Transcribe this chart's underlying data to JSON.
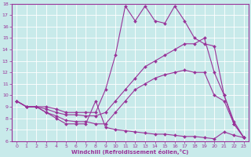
{
  "xlabel": "Windchill (Refroidissement éolien,°C)",
  "bg_color": "#c8eaea",
  "line_color": "#993399",
  "xlim": [
    -0.5,
    23.5
  ],
  "ylim": [
    6,
    18
  ],
  "xticks": [
    0,
    1,
    2,
    3,
    4,
    5,
    6,
    7,
    8,
    9,
    10,
    11,
    12,
    13,
    14,
    15,
    16,
    17,
    18,
    19,
    20,
    21,
    22,
    23
  ],
  "yticks": [
    6,
    7,
    8,
    9,
    10,
    11,
    12,
    13,
    14,
    15,
    16,
    17,
    18
  ],
  "lines": [
    {
      "x": [
        0,
        1,
        2,
        3,
        4,
        5,
        6,
        7,
        8,
        9,
        10,
        11,
        12,
        13,
        14,
        15,
        16,
        17,
        18,
        19,
        20,
        21,
        22,
        23
      ],
      "y": [
        9.5,
        9.0,
        9.0,
        8.5,
        8.0,
        7.5,
        7.5,
        7.5,
        9.5,
        7.2,
        7.0,
        6.9,
        6.8,
        6.7,
        6.6,
        6.6,
        6.5,
        6.4,
        6.4,
        6.3,
        6.2,
        6.8,
        6.5,
        6.3
      ]
    },
    {
      "x": [
        0,
        1,
        2,
        3,
        4,
        5,
        6,
        7,
        8,
        9,
        10,
        11,
        12,
        13,
        14,
        15,
        16,
        17,
        18,
        19,
        20,
        21,
        22,
        23
      ],
      "y": [
        9.5,
        9.0,
        9.0,
        8.5,
        8.2,
        7.8,
        7.7,
        7.7,
        7.5,
        7.5,
        8.5,
        9.5,
        10.5,
        11.0,
        11.5,
        11.8,
        12.0,
        12.2,
        12.0,
        12.0,
        10.0,
        9.5,
        7.5,
        6.3
      ]
    },
    {
      "x": [
        0,
        1,
        2,
        3,
        4,
        5,
        6,
        7,
        8,
        9,
        10,
        11,
        12,
        13,
        14,
        15,
        16,
        17,
        18,
        19,
        20,
        21,
        22,
        23
      ],
      "y": [
        9.5,
        9.0,
        9.0,
        8.8,
        8.5,
        8.3,
        8.3,
        8.2,
        8.2,
        8.5,
        9.5,
        10.5,
        11.5,
        12.5,
        13.0,
        13.5,
        14.0,
        14.5,
        14.5,
        15.0,
        12.0,
        10.0,
        7.5,
        6.3
      ]
    },
    {
      "x": [
        0,
        1,
        2,
        3,
        4,
        5,
        6,
        7,
        8,
        9,
        10,
        11,
        12,
        13,
        14,
        15,
        16,
        17,
        18,
        19,
        20,
        21,
        22,
        23
      ],
      "y": [
        9.5,
        9.0,
        9.0,
        9.0,
        8.8,
        8.5,
        8.5,
        8.5,
        8.5,
        10.5,
        13.5,
        17.8,
        16.5,
        17.8,
        16.5,
        16.3,
        17.8,
        16.5,
        15.0,
        14.5,
        14.3,
        10.0,
        7.7,
        6.3
      ]
    }
  ]
}
